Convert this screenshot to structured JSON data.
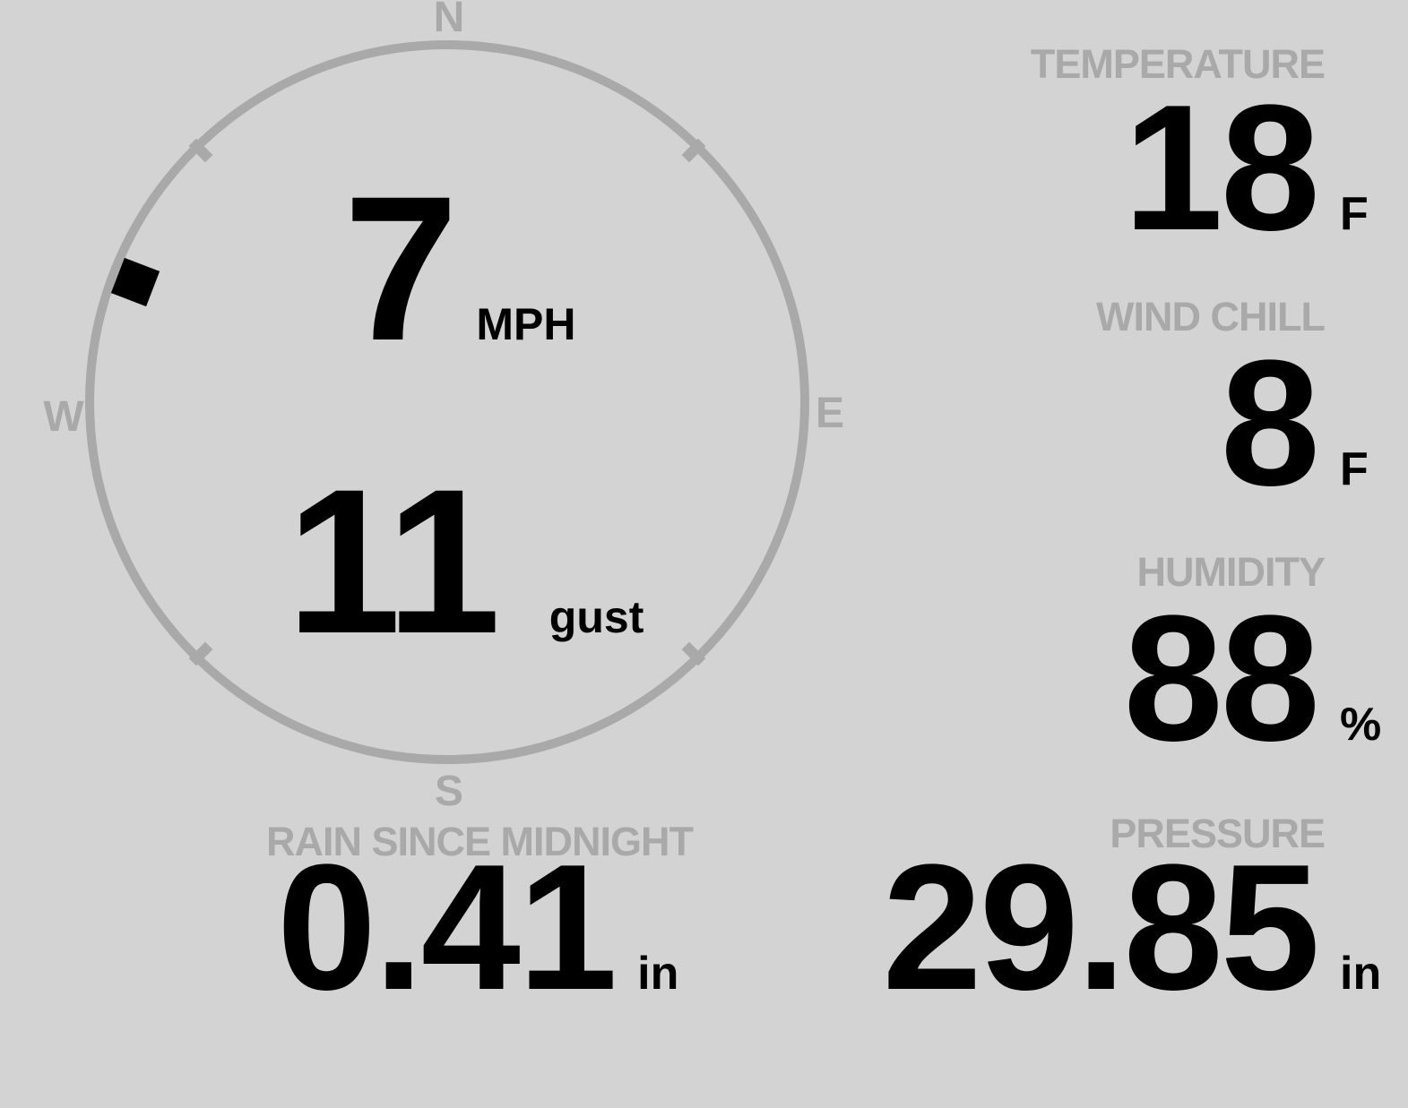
{
  "wind": {
    "speed": "7",
    "speed_unit": "MPH",
    "gust": "11",
    "gust_label": "gust",
    "direction_deg": 291,
    "cardinals": {
      "n": "N",
      "e": "E",
      "s": "S",
      "w": "W"
    }
  },
  "metrics": {
    "temperature": {
      "label": "TEMPERATURE",
      "value": "18",
      "unit": "F"
    },
    "wind_chill": {
      "label": "WIND CHILL",
      "value": "8",
      "unit": "F"
    },
    "humidity": {
      "label": "HUMIDITY",
      "value": "88",
      "unit": "%"
    },
    "rain_since_midnight": {
      "label": "RAIN SINCE MIDNIGHT",
      "value": "0.41",
      "unit": "in"
    },
    "pressure": {
      "label": "PRESSURE",
      "value": "29.85",
      "unit": "in"
    }
  },
  "colors": {
    "background": "#d3d3d3",
    "muted_gray": "#a9a9a9",
    "value_text": "#000000"
  }
}
